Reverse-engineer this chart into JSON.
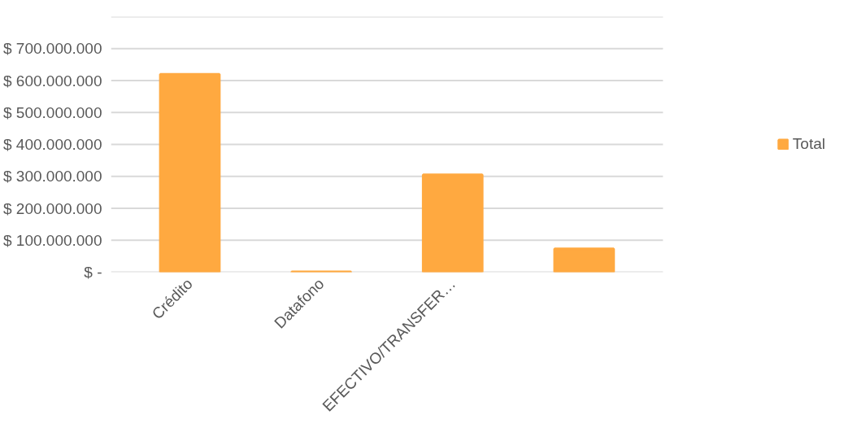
{
  "chart_data": {
    "type": "bar",
    "categories": [
      "Crédito",
      "Datafono",
      "EFECTIVO/TRANSFER…",
      null
    ],
    "series": [
      {
        "name": "Total",
        "color": "#ffa940",
        "values": [
          620000000,
          1000000,
          305000000,
          73000000
        ]
      }
    ],
    "ylim": [
      0,
      800000000
    ],
    "yticks": [
      {
        "value": 0,
        "label": "$ -"
      },
      {
        "value": 100000000,
        "label": "$ 100.000.000"
      },
      {
        "value": 200000000,
        "label": "$ 200.000.000"
      },
      {
        "value": 300000000,
        "label": "$ 300.000.000"
      },
      {
        "value": 400000000,
        "label": "$ 400.000.000"
      },
      {
        "value": 500000000,
        "label": "$ 500.000.000"
      },
      {
        "value": 600000000,
        "label": "$ 600.000.000"
      },
      {
        "value": 700000000,
        "label": "$ 700.000.000"
      },
      {
        "value": 800000000,
        "label": null
      }
    ],
    "grid": "y",
    "legend": "right"
  }
}
